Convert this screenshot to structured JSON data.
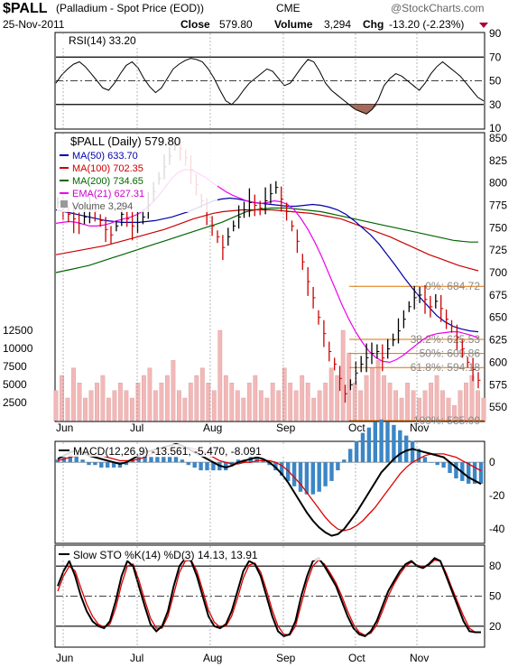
{
  "header": {
    "symbol": "$PALL",
    "name": "(Palladium - Spot Price (EOD))",
    "exchange": "CME",
    "watermark": "@StockCharts.com",
    "date": "25-Nov-2011",
    "close_label": "Close",
    "close": "579.80",
    "volume_label": "Volume",
    "volume": "3,294",
    "chg_label": "Chg",
    "chg": "-13.20 (-2.23%)"
  },
  "colors": {
    "ma50": "#0000aa",
    "ma100": "#cc0000",
    "ma200": "#006600",
    "ema21": "#ee00ee",
    "volume": "#f2b8b8",
    "fib": "#e07000",
    "macd_line": "#000000",
    "macd_signal": "#dd0000",
    "macd_hist": "#3b86c6",
    "rsi_neg": "#a66a5a"
  },
  "x_labels": [
    "Jun",
    "Jul",
    "Aug",
    "Sep",
    "Oct",
    "Nov"
  ],
  "chart_data": [
    {
      "type": "line",
      "title": "RSI(14) 33.20",
      "yticks": [
        "90",
        "70",
        "50",
        "30",
        "10"
      ],
      "ylim": [
        10,
        90
      ],
      "values": [
        48,
        55,
        60,
        64,
        66,
        62,
        56,
        50,
        44,
        42,
        48,
        56,
        63,
        66,
        61,
        52,
        45,
        40,
        44,
        52,
        60,
        64,
        67,
        69,
        68,
        66,
        60,
        52,
        42,
        33,
        30,
        35,
        42,
        48,
        52,
        56,
        60,
        58,
        52,
        46,
        48,
        55,
        62,
        68,
        66,
        58,
        48,
        42,
        38,
        34,
        30,
        26,
        24,
        22,
        26,
        34,
        46,
        52,
        56,
        54,
        50,
        46,
        42,
        48,
        56,
        62,
        66,
        62,
        58,
        54,
        48,
        42,
        36,
        33
      ]
    },
    {
      "type": "line",
      "title": "$PALL (Daily) 579.80",
      "legend": [
        "MA(50) 633.70",
        "MA(100) 702.35",
        "MA(200) 734.65",
        "EMA(21) 627.31",
        "Volume 3,294"
      ],
      "yticks": [
        "850",
        "825",
        "800",
        "775",
        "750",
        "725",
        "700",
        "675",
        "650",
        "625",
        "600",
        "575",
        "550"
      ],
      "ylim": [
        535,
        855
      ],
      "vol_ticks": [
        "12500",
        "10000",
        "7500",
        "5000",
        "2500"
      ],
      "fib_levels": [
        {
          "label": "0%: 684.72",
          "value": 684.72
        },
        {
          "label": "38.2%: 625.53",
          "value": 625.53
        },
        {
          "label": "50%: 609.86",
          "value": 609.86
        },
        {
          "label": "61.8%: 594.18",
          "value": 594.18
        },
        {
          "label": "100%: 535.00",
          "value": 535.0
        }
      ],
      "price": [
        778,
        772,
        765,
        760,
        755,
        762,
        770,
        768,
        758,
        748,
        742,
        752,
        765,
        760,
        752,
        756,
        762,
        775,
        790,
        805,
        818,
        830,
        842,
        838,
        828,
        815,
        798,
        780,
        768,
        752,
        740,
        728,
        740,
        752,
        762,
        770,
        778,
        775,
        772,
        780,
        788,
        795,
        782,
        768,
        752,
        735,
        712,
        690,
        672,
        650,
        632,
        612,
        598,
        582,
        565,
        575,
        588,
        598,
        605,
        610,
        612,
        605,
        615,
        625,
        635,
        648,
        662,
        672,
        675,
        670,
        662,
        668,
        660,
        648,
        640,
        628,
        615,
        600,
        592,
        580
      ],
      "ma50": [
        770,
        768,
        766,
        764,
        762,
        760,
        758,
        757,
        756,
        756,
        756,
        757,
        758,
        760,
        762,
        765,
        768,
        772,
        776,
        780,
        782,
        783,
        782,
        780,
        778,
        777,
        776,
        775,
        774,
        774,
        775,
        776,
        775,
        773,
        770,
        765,
        758,
        750,
        742,
        732,
        720,
        708,
        695,
        683,
        672,
        662,
        652,
        645,
        640,
        637,
        635,
        634
      ],
      "ma100": [
        720,
        722,
        724,
        726,
        728,
        730,
        733,
        736,
        739,
        742,
        745,
        748,
        752,
        756,
        760,
        763,
        766,
        768,
        769,
        770,
        770,
        770,
        770,
        769,
        768,
        767,
        766,
        764,
        762,
        760,
        756,
        752,
        748,
        744,
        740,
        735,
        730,
        725,
        720,
        716,
        712,
        708,
        705,
        702
      ],
      "ma200": [
        700,
        702,
        704,
        706,
        708,
        711,
        714,
        717,
        720,
        723,
        726,
        729,
        732,
        735,
        738,
        741,
        744,
        747,
        750,
        753,
        756,
        760,
        764,
        768,
        770,
        771,
        772,
        772,
        772,
        771,
        770,
        769,
        768,
        766,
        764,
        762,
        760,
        758,
        756,
        754,
        752,
        750,
        748,
        746,
        744,
        742,
        740,
        738,
        736,
        735,
        734,
        734
      ],
      "ema21": [
        755,
        756,
        757,
        756,
        754,
        752,
        752,
        753,
        755,
        758,
        760,
        762,
        765,
        770,
        777,
        785,
        795,
        805,
        812,
        815,
        814,
        810,
        806,
        800,
        795,
        790,
        786,
        783,
        780,
        778,
        777,
        778,
        780,
        779,
        776,
        770,
        760,
        748,
        734,
        718,
        700,
        682,
        664,
        648,
        634,
        622,
        612,
        605,
        601,
        600,
        603,
        608,
        614,
        620,
        626,
        630,
        632,
        633,
        634,
        634,
        632,
        630,
        627
      ],
      "volume": [
        4,
        6,
        3,
        7,
        5,
        3,
        4,
        5,
        6,
        3,
        4,
        5,
        4,
        3,
        5,
        6,
        7,
        4,
        5,
        6,
        8,
        4,
        3,
        5,
        6,
        7,
        5,
        4,
        12,
        6,
        5,
        4,
        3,
        5,
        6,
        4,
        3,
        5,
        4,
        7,
        5,
        4,
        6,
        5,
        3,
        4,
        5,
        7,
        6,
        12,
        9,
        5,
        4,
        6,
        7,
        8,
        6,
        5,
        4,
        3,
        5,
        4,
        3,
        4,
        5,
        6,
        4,
        3,
        2,
        4,
        5,
        6,
        4,
        3
      ]
    },
    {
      "type": "area",
      "title": "MACD(12,26,9) -13.561, -5.470, -8.091",
      "series_names": [
        "-13.561",
        "-5.470",
        "-8.091"
      ],
      "yticks": [
        "0",
        "-20",
        "-40"
      ],
      "ylim": [
        -48,
        12
      ],
      "macd": [
        2,
        4,
        6,
        7,
        6,
        4,
        3,
        2,
        1,
        0,
        -1,
        0,
        2,
        4,
        6,
        7,
        8,
        9,
        10,
        11,
        10,
        8,
        6,
        4,
        2,
        0,
        -2,
        -3,
        -2,
        0,
        1,
        2,
        3,
        2,
        0,
        -3,
        -7,
        -12,
        -18,
        -24,
        -30,
        -35,
        -39,
        -42,
        -44,
        -43,
        -40,
        -35,
        -30,
        -24,
        -18,
        -12,
        -6,
        -2,
        2,
        5,
        7,
        8,
        7,
        6,
        5,
        4,
        3,
        0,
        -3,
        -6,
        -9,
        -11,
        -13
      ],
      "signal": [
        1,
        2,
        3,
        4,
        5,
        5,
        4,
        4,
        3,
        2,
        1,
        1,
        1,
        2,
        3,
        5,
        6,
        7,
        8,
        9,
        9,
        9,
        8,
        7,
        5,
        3,
        1,
        0,
        -1,
        -1,
        0,
        0,
        1,
        1,
        1,
        0,
        -2,
        -5,
        -9,
        -13,
        -18,
        -23,
        -28,
        -33,
        -37,
        -40,
        -41,
        -40,
        -38,
        -35,
        -31,
        -27,
        -22,
        -17,
        -12,
        -7,
        -3,
        0,
        2,
        4,
        5,
        5,
        5,
        4,
        3,
        1,
        -1,
        -3,
        -5
      ]
    },
    {
      "type": "line",
      "title": "Slow STO %K(14) %D(3) 14.13, 13.91",
      "series_names": [
        "14.13",
        "13.91"
      ],
      "yticks": [
        "80",
        "50",
        "20"
      ],
      "ylim": [
        0,
        100
      ],
      "k": [
        60,
        75,
        85,
        70,
        50,
        35,
        25,
        20,
        18,
        25,
        45,
        70,
        85,
        80,
        60,
        40,
        22,
        15,
        20,
        35,
        60,
        80,
        88,
        85,
        70,
        50,
        30,
        20,
        18,
        22,
        35,
        55,
        75,
        85,
        82,
        70,
        50,
        30,
        15,
        10,
        12,
        25,
        50,
        70,
        85,
        88,
        80,
        70,
        60,
        45,
        30,
        18,
        12,
        10,
        15,
        25,
        40,
        55,
        65,
        75,
        82,
        85,
        80,
        78,
        82,
        88,
        85,
        70,
        55,
        40,
        25,
        15,
        14,
        14
      ],
      "d": [
        55,
        70,
        80,
        75,
        58,
        42,
        30,
        22,
        19,
        22,
        38,
        62,
        80,
        82,
        66,
        46,
        28,
        18,
        18,
        30,
        52,
        74,
        85,
        86,
        75,
        56,
        36,
        24,
        19,
        20,
        30,
        48,
        68,
        81,
        83,
        74,
        56,
        36,
        20,
        12,
        11,
        20,
        42,
        64,
        80,
        86,
        82,
        73,
        63,
        50,
        35,
        22,
        14,
        11,
        13,
        21,
        35,
        50,
        62,
        72,
        80,
        84,
        81,
        79,
        81,
        86,
        85,
        73,
        58,
        44,
        30,
        18,
        14,
        13.9
      ]
    }
  ]
}
